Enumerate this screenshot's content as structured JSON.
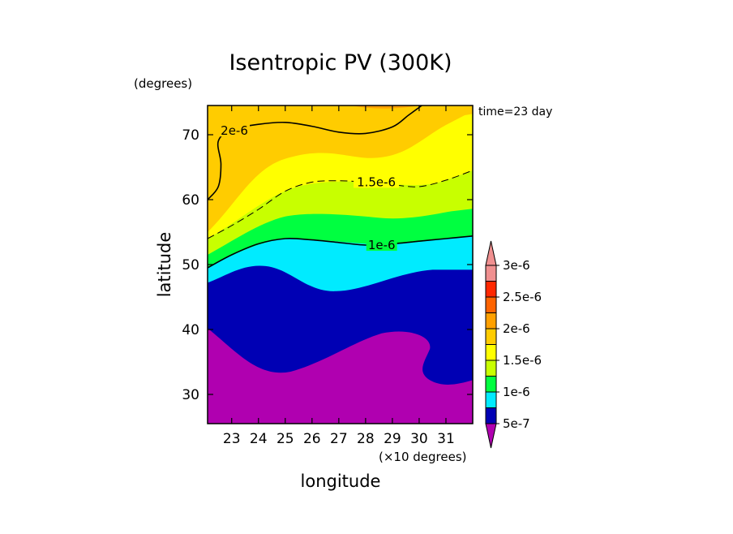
{
  "chart_data": {
    "type": "heatmap",
    "subtype": "filled-contour",
    "title": "Isentropic PV (300K)",
    "xlabel": "longitude",
    "ylabel": "latitude",
    "x_unit": "(×10 degrees)",
    "y_unit": "(degrees)",
    "annotation": "time=23 day",
    "xlim": [
      22.1,
      32.0
    ],
    "ylim": [
      25.5,
      74.5
    ],
    "xticks": [
      "23",
      "24",
      "25",
      "26",
      "27",
      "28",
      "29",
      "30",
      "31"
    ],
    "yticks": [
      "30",
      "40",
      "50",
      "60",
      "70"
    ],
    "levels": [
      5e-07,
      7.5e-07,
      1e-06,
      1.25e-06,
      1.5e-06,
      1.75e-06,
      2e-06,
      2.25e-06,
      2.5e-06,
      2.75e-06,
      3e-06
    ],
    "colorbar_labels": [
      "5e-7",
      "1e-6",
      "1.5e-6",
      "2e-6",
      "2.5e-6",
      "3e-6"
    ],
    "colors": [
      "#b000b0",
      "#0000b4",
      "#00ebff",
      "#00ff40",
      "#c8ff00",
      "#ffff00",
      "#ffcc00",
      "#ffa000",
      "#ff6400",
      "#ff2800",
      "#f09090"
    ],
    "contour_lines": [
      {
        "level": 1e-06,
        "label": "1e-6",
        "style": "solid",
        "points": [
          [
            22.1,
            49.5
          ],
          [
            23,
            51.5
          ],
          [
            24,
            53.2
          ],
          [
            25,
            54.0
          ],
          [
            26,
            53.8
          ],
          [
            27,
            53.4
          ],
          [
            28,
            53.0
          ],
          [
            29,
            53.2
          ],
          [
            30,
            53.6
          ],
          [
            31,
            54.0
          ],
          [
            32,
            54.4
          ]
        ]
      },
      {
        "level": 1.5e-06,
        "label": "1.5e-6",
        "style": "dashed",
        "points": [
          [
            22.1,
            54.0
          ],
          [
            23,
            56.0
          ],
          [
            24,
            58.5
          ],
          [
            25,
            61.3
          ],
          [
            26,
            62.7
          ],
          [
            27,
            62.9
          ],
          [
            28,
            62.7
          ],
          [
            29,
            62.3
          ],
          [
            30,
            62.0
          ],
          [
            31,
            63.0
          ],
          [
            32,
            64.5
          ]
        ]
      },
      {
        "level": 2e-06,
        "label": "2e-6",
        "style": "solid",
        "points": [
          [
            22.1,
            60.0
          ],
          [
            22.5,
            62.0
          ],
          [
            22.6,
            65.5
          ],
          [
            22.5,
            69.0
          ],
          [
            23,
            70.8
          ],
          [
            24,
            71.6
          ],
          [
            25,
            71.9
          ],
          [
            26,
            71.3
          ],
          [
            27,
            70.4
          ],
          [
            28,
            70.2
          ],
          [
            29,
            71.2
          ],
          [
            29.6,
            73.0
          ],
          [
            30.1,
            74.5
          ]
        ]
      }
    ]
  }
}
